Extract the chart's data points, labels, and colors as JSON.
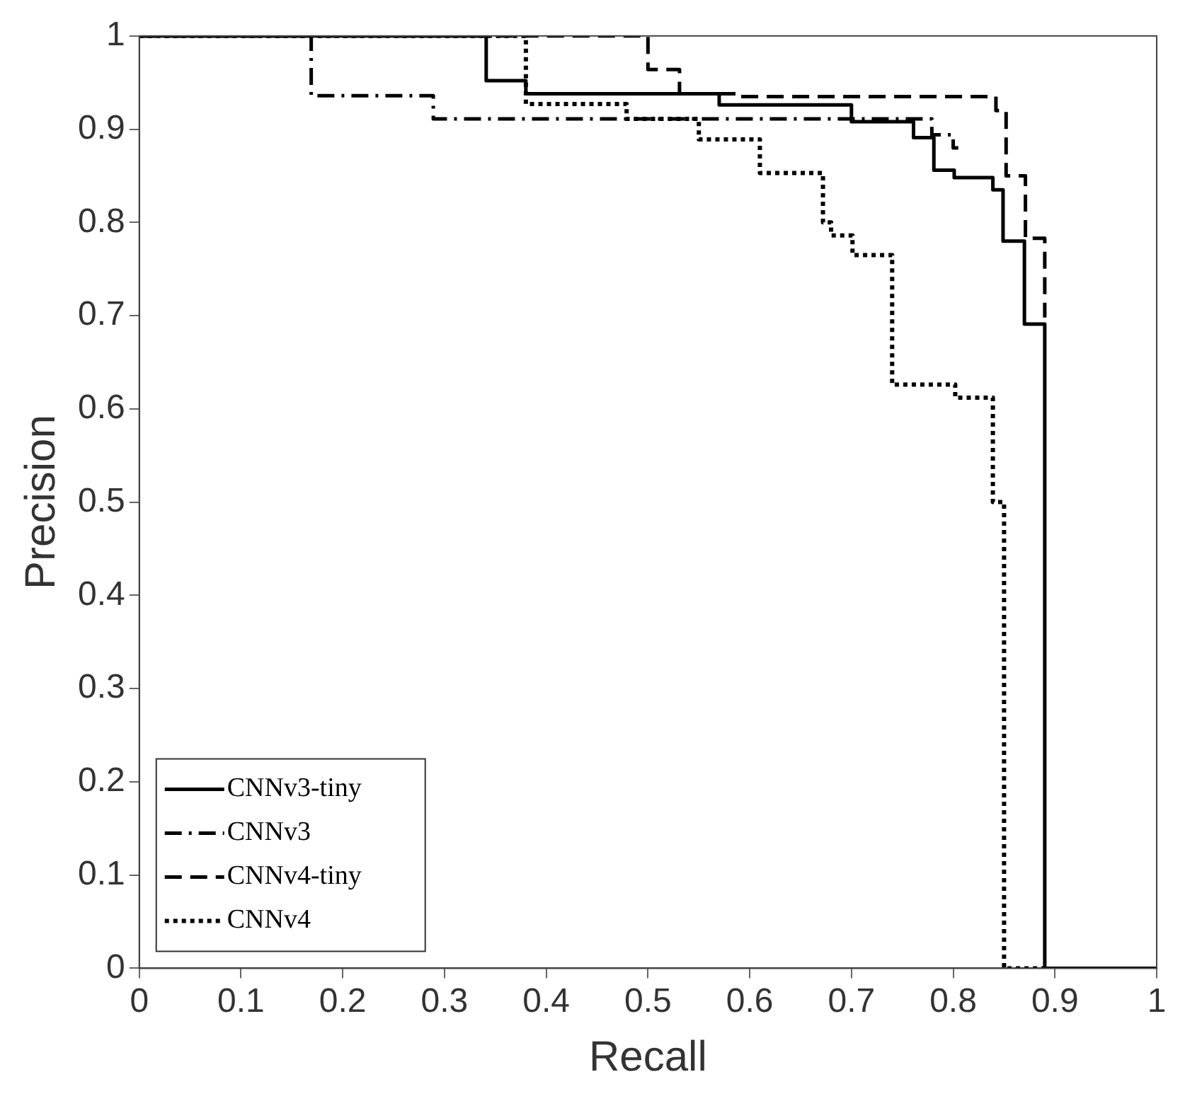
{
  "chart_data": {
    "type": "step",
    "xlabel": "Recall",
    "ylabel": "Precision",
    "xlim": [
      0,
      1
    ],
    "ylim": [
      0,
      1
    ],
    "xticks": [
      0,
      0.1,
      0.2,
      0.3,
      0.4,
      0.5,
      0.6,
      0.7,
      0.8,
      0.9,
      1
    ],
    "yticks": [
      0,
      0.1,
      0.2,
      0.3,
      0.4,
      0.5,
      0.6,
      0.7,
      0.8,
      0.9,
      1
    ],
    "grid": false,
    "legend": "bottom left",
    "series": [
      {
        "name": "CNNv3-tiny",
        "color": "#000000",
        "line_style": "solid",
        "x": [
          0,
          0.341,
          0.38,
          0.57,
          0.7,
          0.761,
          0.781,
          0.801,
          0.839,
          0.849,
          0.87,
          0.89,
          1
        ],
        "values": [
          1,
          0.952,
          0.938,
          0.926,
          0.908,
          0.891,
          0.856,
          0.848,
          0.835,
          0.78,
          0.691,
          0,
          0
        ]
      },
      {
        "name": "CNNv3",
        "color": "#000000",
        "line_style": "dashdot",
        "x": [
          0,
          0.169,
          0.289,
          0.779,
          0.8,
          0.805
        ],
        "values": [
          1,
          0.936,
          0.911,
          0.894,
          0.88,
          0.88
        ]
      },
      {
        "name": "CNNv4-tiny",
        "color": "#000000",
        "line_style": "dashed",
        "x": [
          0,
          0.5,
          0.531,
          0.588,
          0.842,
          0.852,
          0.871,
          0.89
        ],
        "values": [
          1,
          0.964,
          0.938,
          0.935,
          0.92,
          0.85,
          0.783,
          0.698
        ]
      },
      {
        "name": "CNNv4",
        "color": "#000000",
        "line_style": "dotted",
        "x": [
          0,
          0.38,
          0.479,
          0.55,
          0.61,
          0.672,
          0.68,
          0.701,
          0.74,
          0.802,
          0.839,
          0.85,
          0.89
        ],
        "values": [
          1,
          0.927,
          0.911,
          0.889,
          0.853,
          0.8,
          0.786,
          0.765,
          0.626,
          0.612,
          0.5,
          0,
          0
        ]
      }
    ]
  }
}
